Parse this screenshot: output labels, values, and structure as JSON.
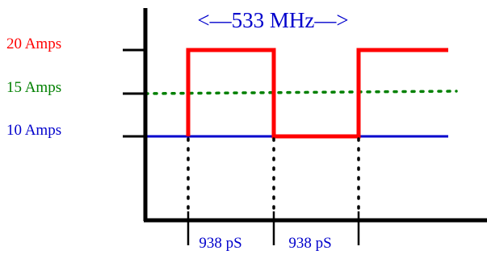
{
  "title": "<—533 MHz—>",
  "levels": [
    {
      "label": "20 Amps",
      "color": "#ff0000"
    },
    {
      "label": "15 Amps",
      "color": "#008000"
    },
    {
      "label": "10 Amps",
      "color": "#0000cc"
    }
  ],
  "intervals": [
    {
      "label": "938 pS",
      "color": "#0000cc"
    },
    {
      "label": "938 pS",
      "color": "#0000cc"
    }
  ],
  "colors": {
    "axis": "#000000",
    "signal": "#ff0000",
    "midline": "#008000",
    "baseline": "#0000cc",
    "title": "#0000cc"
  }
}
